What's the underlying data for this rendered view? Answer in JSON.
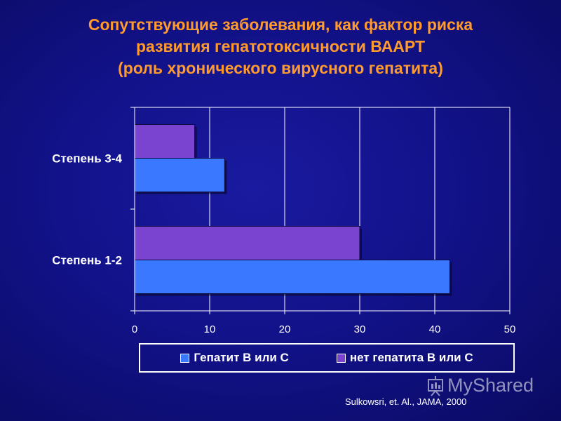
{
  "title": {
    "line1": "Сопутствующие заболевания, как фактор риска",
    "line2": "развития гепатотоксичности ВААРТ",
    "line3": "(роль хронического вирусного гепатита)"
  },
  "colors": {
    "title": "#ff9a2e",
    "series_hep": "#3a78ff",
    "series_nohep": "#7a44d0",
    "background": "#12128a",
    "grid": "#ffffff"
  },
  "chart_data": {
    "type": "bar",
    "orientation": "horizontal",
    "categories": [
      "Степень 3-4",
      "Степень 1-2"
    ],
    "series": [
      {
        "name": "Гепатит В или С",
        "values": [
          12,
          42
        ]
      },
      {
        "name": "нет гепатита В или С",
        "values": [
          8,
          30
        ]
      }
    ],
    "xlim": [
      0,
      50
    ],
    "xticks": [
      0,
      10,
      20,
      30,
      40,
      50
    ],
    "grid": true,
    "legend_position": "bottom"
  },
  "legend": {
    "items": [
      {
        "label": "Гепатит В или С"
      },
      {
        "label": "нет гепатита В или С"
      }
    ]
  },
  "source": "Sulkowsri, et. Al., JAMA, 2000",
  "watermark": "MyShared"
}
